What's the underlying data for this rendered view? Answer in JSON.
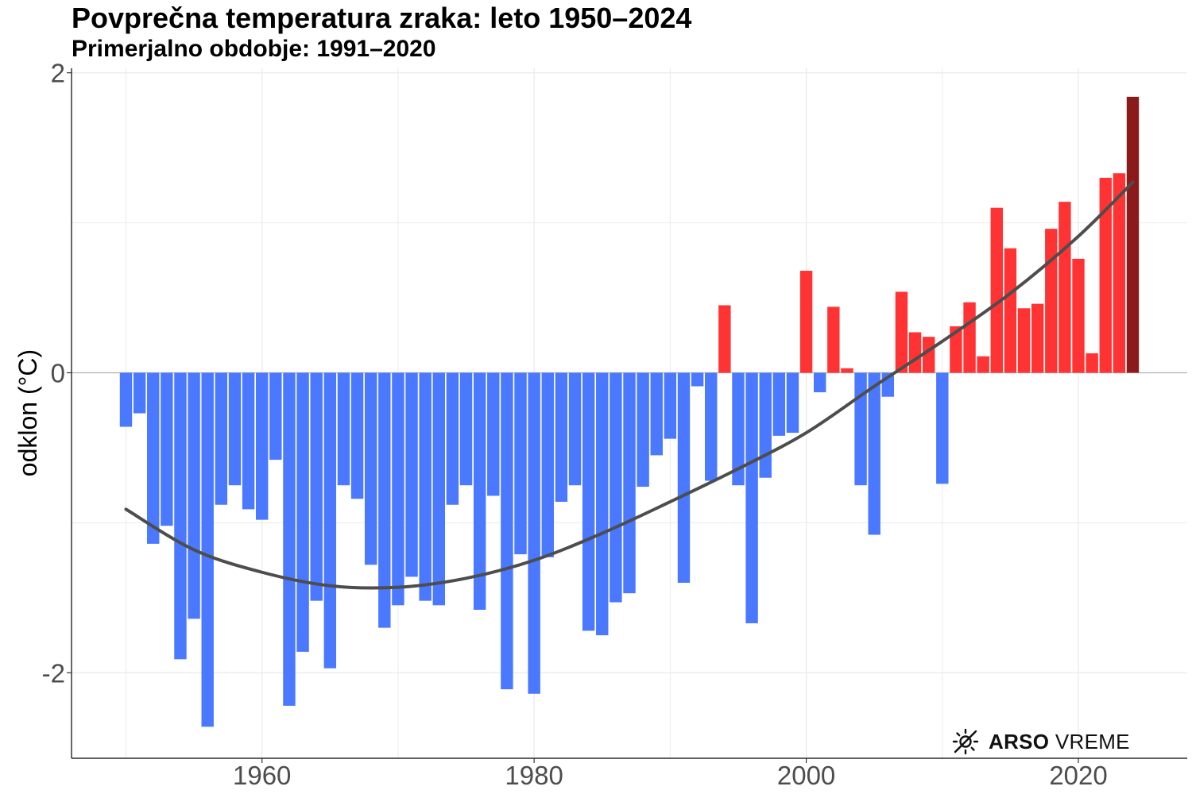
{
  "header": {
    "title": "Povprečna temperatura zraka: leto 1950–2024",
    "subtitle": "Primerjalno obdobje: 1991–2020"
  },
  "logo": {
    "brand_bold": "ARSO",
    "brand_light": "VREME",
    "icon": "sun-icon"
  },
  "colors": {
    "negative": "#4a78ff",
    "positive": "#ff3333",
    "latest": "#8b1a1a",
    "trend": "#4d4d4d",
    "grid": "#ebebeb",
    "zero_line": "#b3b3b3"
  },
  "chart_data": {
    "type": "bar",
    "title": "Povprečna temperatura zraka: leto 1950–2024",
    "subtitle": "Primerjalno obdobje: 1991–2020",
    "xlabel": "",
    "ylabel": "odklon (°C)",
    "xlim": [
      1946,
      2028
    ],
    "ylim": [
      -2.57,
      2.03
    ],
    "x_ticks": [
      1960,
      1980,
      2000,
      2020
    ],
    "y_ticks": [
      -2,
      0,
      2
    ],
    "y_tick_labels": [
      "-2",
      "0",
      "2"
    ],
    "grid": true,
    "x": [
      1950,
      1951,
      1952,
      1953,
      1954,
      1955,
      1956,
      1957,
      1958,
      1959,
      1960,
      1961,
      1962,
      1963,
      1964,
      1965,
      1966,
      1967,
      1968,
      1969,
      1970,
      1971,
      1972,
      1973,
      1974,
      1975,
      1976,
      1977,
      1978,
      1979,
      1980,
      1981,
      1982,
      1983,
      1984,
      1985,
      1986,
      1987,
      1988,
      1989,
      1990,
      1991,
      1992,
      1993,
      1994,
      1995,
      1996,
      1997,
      1998,
      1999,
      2000,
      2001,
      2002,
      2003,
      2004,
      2005,
      2006,
      2007,
      2008,
      2009,
      2010,
      2011,
      2012,
      2013,
      2014,
      2015,
      2016,
      2017,
      2018,
      2019,
      2020,
      2021,
      2022,
      2023,
      2024
    ],
    "values": [
      -0.36,
      -0.27,
      -1.14,
      -1.02,
      -1.91,
      -1.64,
      -2.36,
      -0.88,
      -0.75,
      -0.91,
      -0.98,
      -0.58,
      -2.22,
      -1.86,
      -1.52,
      -1.97,
      -0.75,
      -0.84,
      -1.28,
      -1.7,
      -1.55,
      -1.36,
      -1.52,
      -1.55,
      -0.88,
      -0.75,
      -1.58,
      -0.82,
      -2.11,
      -1.21,
      -2.14,
      -1.23,
      -0.86,
      -0.75,
      -1.72,
      -1.75,
      -1.53,
      -1.47,
      -0.76,
      -0.55,
      -0.44,
      -1.4,
      -0.09,
      -0.72,
      0.45,
      -0.75,
      -1.67,
      -0.7,
      -0.42,
      -0.4,
      0.68,
      -0.13,
      0.44,
      0.03,
      -0.75,
      -1.08,
      -0.16,
      0.54,
      0.27,
      0.24,
      -0.74,
      0.31,
      0.47,
      0.11,
      1.1,
      0.83,
      0.43,
      0.46,
      0.96,
      1.14,
      0.76,
      0.13,
      1.3,
      1.33,
      1.84
    ],
    "trend": {
      "name": "",
      "x": [
        1950,
        1955,
        1960,
        1965,
        1970,
        1975,
        1980,
        1985,
        1990,
        1995,
        2000,
        2005,
        2010,
        2015,
        2020,
        2024
      ],
      "values": [
        -0.91,
        -1.18,
        -1.33,
        -1.42,
        -1.43,
        -1.37,
        -1.25,
        -1.07,
        -0.86,
        -0.64,
        -0.4,
        -0.09,
        0.21,
        0.53,
        0.91,
        1.27
      ]
    }
  }
}
